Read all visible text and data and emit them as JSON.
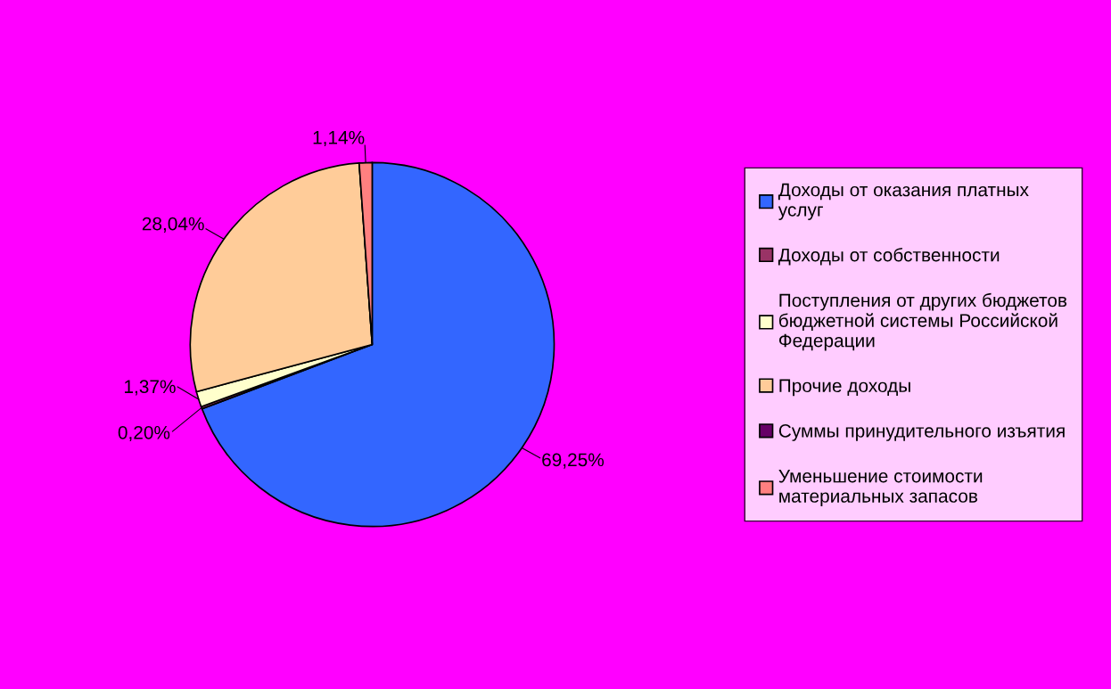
{
  "chart_data": {
    "type": "pie",
    "categories": [
      "Доходы от оказания платных услуг",
      "Доходы от собственности",
      "Поступления от других бюджетов бюджетной системы Российской Федерации",
      "Прочие доходы",
      "Суммы принудительного изъятия",
      "Уменьшение стоимости материальных запасов"
    ],
    "values": [
      69.25,
      0.2,
      1.37,
      28.04,
      0,
      1.14
    ],
    "value_labels": [
      "69,25%",
      "0,20%",
      "1,37%",
      "28,04%",
      null,
      "1,14%"
    ],
    "colors": [
      "#3366ff",
      "#993366",
      "#ffffcc",
      "#ffcc99",
      "#660066",
      "#ff8080"
    ],
    "legend": "right"
  }
}
